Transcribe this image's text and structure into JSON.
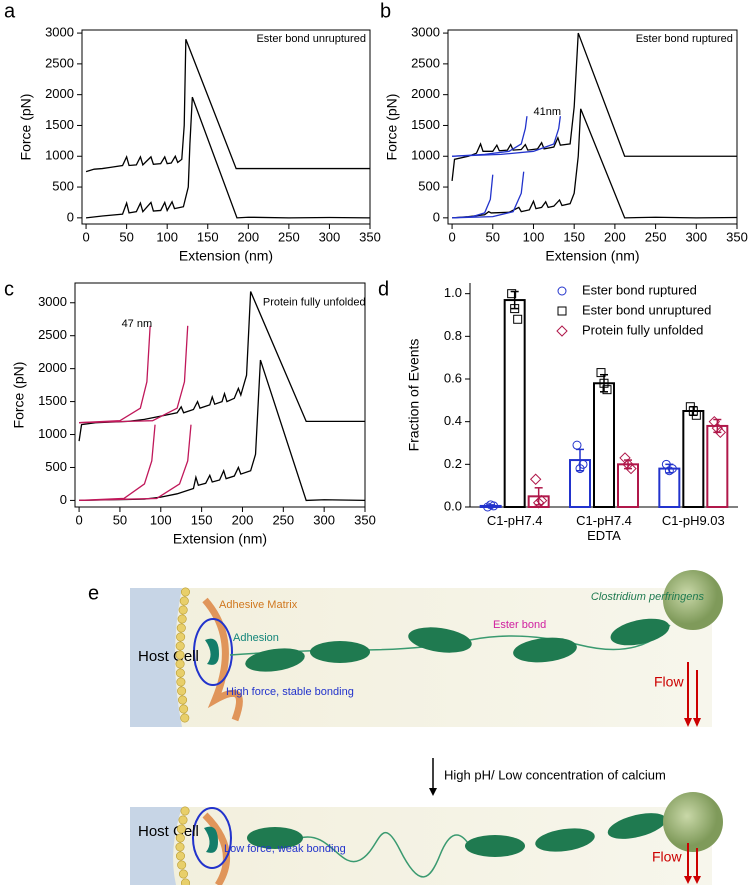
{
  "chart_data": [
    {
      "type": "line",
      "panel": "a",
      "xlabel": "Extension (nm)",
      "ylabel": "Force (pN)",
      "xlim": [
        -5,
        350
      ],
      "ylim": [
        -100,
        3050
      ],
      "xticks": [
        0,
        50,
        100,
        150,
        200,
        250,
        300,
        350
      ],
      "yticks": [
        0,
        500,
        1000,
        1500,
        2000,
        2500,
        3000
      ],
      "annotations": [
        {
          "text": "Ester bond unruptured",
          "color": "#000000"
        }
      ],
      "series": [
        {
          "color": "#000000",
          "x": [
            0,
            10,
            20,
            30,
            45,
            50,
            53,
            62,
            67,
            70,
            80,
            83,
            92,
            97,
            100,
            105,
            110,
            113,
            118,
            121,
            123,
            185,
            200,
            250,
            300,
            350
          ],
          "values": [
            750,
            790,
            800,
            820,
            850,
            990,
            850,
            860,
            990,
            860,
            990,
            870,
            880,
            990,
            880,
            890,
            1000,
            900,
            950,
            1500,
            2900,
            800,
            800,
            800,
            800,
            800
          ]
        },
        {
          "color": "#000000",
          "x": [
            0,
            20,
            45,
            50,
            53,
            62,
            67,
            70,
            80,
            83,
            92,
            97,
            100,
            106,
            109,
            120,
            126,
            128,
            131,
            186,
            200,
            250,
            300,
            350
          ],
          "values": [
            0,
            30,
            60,
            240,
            80,
            100,
            240,
            100,
            250,
            110,
            120,
            250,
            120,
            260,
            150,
            180,
            500,
            1200,
            1960,
            0,
            10,
            0,
            5,
            0
          ]
        }
      ]
    },
    {
      "type": "line",
      "panel": "b",
      "xlabel": "Extension (nm)",
      "ylabel": "Force (pN)",
      "xlim": [
        -5,
        350
      ],
      "ylim": [
        -100,
        3050
      ],
      "xticks": [
        0,
        50,
        100,
        150,
        200,
        250,
        300,
        350
      ],
      "yticks": [
        0,
        500,
        1000,
        1500,
        2000,
        2500,
        3000
      ],
      "annotations": [
        {
          "text": "Ester bond ruptured",
          "color": "#2233cc"
        },
        {
          "text": "41nm",
          "color": "#2233cc"
        }
      ],
      "series": [
        {
          "color": "#000000",
          "x": [
            0,
            3,
            20,
            30,
            35,
            38,
            50,
            55,
            58,
            68,
            72,
            75,
            85,
            90,
            93,
            105,
            110,
            113,
            125,
            130,
            133,
            145,
            150,
            155,
            212,
            250,
            300,
            350
          ],
          "values": [
            600,
            950,
            1000,
            1050,
            1200,
            1080,
            1080,
            1180,
            1090,
            1100,
            1190,
            1100,
            1110,
            1190,
            1100,
            1120,
            1220,
            1120,
            1150,
            1300,
            1180,
            1200,
            1800,
            3000,
            1000,
            1000,
            1000,
            1000
          ]
        },
        {
          "color": "#000000",
          "x": [
            0,
            20,
            40,
            45,
            48,
            70,
            82,
            85,
            95,
            100,
            103,
            110,
            115,
            118,
            125,
            132,
            135,
            145,
            150,
            155,
            158,
            212,
            250,
            300,
            350
          ],
          "values": [
            0,
            20,
            50,
            100,
            80,
            90,
            170,
            100,
            130,
            270,
            150,
            170,
            260,
            170,
            190,
            290,
            200,
            230,
            400,
            1000,
            1770,
            0,
            10,
            0,
            5
          ]
        },
        {
          "color": "#2233cc",
          "x": [
            0,
            40,
            70,
            85,
            90,
            92
          ],
          "values": [
            1000,
            1030,
            1080,
            1200,
            1450,
            1650
          ]
        },
        {
          "color": "#2233cc",
          "x": [
            0,
            60,
            100,
            125,
            131,
            133
          ],
          "values": [
            1000,
            1030,
            1080,
            1200,
            1450,
            1650
          ]
        },
        {
          "color": "#2233cc",
          "x": [
            0,
            25,
            40,
            47,
            50
          ],
          "values": [
            0,
            20,
            80,
            300,
            700
          ]
        },
        {
          "color": "#2233cc",
          "x": [
            0,
            50,
            75,
            85,
            88
          ],
          "values": [
            0,
            20,
            100,
            400,
            750
          ]
        }
      ]
    },
    {
      "type": "line",
      "panel": "c",
      "xlabel": "Extension (nm)",
      "ylabel": "Force (pN)",
      "xlim": [
        -5,
        350
      ],
      "ylim": [
        -100,
        3300
      ],
      "xticks": [
        0,
        50,
        100,
        150,
        200,
        250,
        300,
        350
      ],
      "yticks": [
        0,
        500,
        1000,
        1500,
        2000,
        2500,
        3000
      ],
      "annotations": [
        {
          "text": "Protein fully unfolded",
          "color": "#c0185a"
        },
        {
          "text": "47 nm",
          "color": "#c0185a"
        }
      ],
      "series": [
        {
          "color": "#000000",
          "x": [
            0,
            3,
            20,
            60,
            80,
            100,
            120,
            125,
            128,
            140,
            145,
            148,
            160,
            163,
            166,
            175,
            178,
            181,
            190,
            195,
            198,
            205,
            210,
            278,
            300,
            350
          ],
          "values": [
            900,
            1150,
            1180,
            1200,
            1230,
            1280,
            1330,
            1420,
            1330,
            1380,
            1500,
            1400,
            1450,
            1570,
            1460,
            1500,
            1620,
            1500,
            1550,
            1700,
            1600,
            1900,
            3170,
            1200,
            1200,
            1200
          ]
        },
        {
          "color": "#000000",
          "x": [
            0,
            40,
            80,
            100,
            120,
            140,
            143,
            146,
            155,
            160,
            163,
            172,
            177,
            180,
            190,
            195,
            198,
            210,
            216,
            222,
            278,
            300,
            350
          ],
          "values": [
            0,
            10,
            20,
            50,
            100,
            180,
            350,
            230,
            260,
            380,
            280,
            310,
            450,
            330,
            370,
            500,
            400,
            450,
            700,
            2130,
            0,
            10,
            0
          ]
        },
        {
          "color": "#c0185a",
          "x": [
            0,
            50,
            75,
            83,
            87
          ],
          "values": [
            1180,
            1210,
            1400,
            1800,
            2650
          ]
        },
        {
          "color": "#c0185a",
          "x": [
            0,
            90,
            120,
            129,
            133
          ],
          "values": [
            1180,
            1210,
            1400,
            1800,
            2650
          ]
        },
        {
          "color": "#c0185a",
          "x": [
            0,
            55,
            80,
            89,
            93
          ],
          "values": [
            0,
            30,
            250,
            600,
            1150
          ]
        },
        {
          "color": "#c0185a",
          "x": [
            0,
            95,
            123,
            133,
            137
          ],
          "values": [
            0,
            30,
            250,
            600,
            1150
          ]
        }
      ]
    },
    {
      "type": "bar",
      "panel": "d",
      "ylabel": "Fraction of Events",
      "categories": [
        "C1-pH7.4",
        "C1-pH7.4 EDTA",
        "C1-pH9.03"
      ],
      "ylim": [
        0,
        1.05
      ],
      "yticks": [
        {
          "value": 0,
          "label": "0.0"
        },
        0.2,
        0.4,
        0.6,
        0.8,
        {
          "value": 1,
          "label": "1.0"
        }
      ],
      "series": [
        {
          "name": "Ester bond ruptured",
          "color": "#2233cc",
          "marker": "circle",
          "values": [
            0.005,
            0.22,
            0.18
          ],
          "errors": [
            0.005,
            0.05,
            0.02
          ],
          "points": [
            [
              0,
              0.01,
              0.005
            ],
            [
              0.29,
              0.18,
              0.2
            ],
            [
              0.2,
              0.17,
              0.18
            ]
          ]
        },
        {
          "name": "Ester bond unruptured",
          "color": "#000000",
          "marker": "square",
          "values": [
            0.97,
            0.58,
            0.45
          ],
          "errors": [
            0.04,
            0.04,
            0.02
          ],
          "points": [
            [
              1.0,
              0.93,
              0.88
            ],
            [
              0.63,
              0.58,
              0.55
            ],
            [
              0.47,
              0.45,
              0.43
            ]
          ]
        },
        {
          "name": "Protein fully unfolded",
          "color": "#b0184a",
          "marker": "diamond",
          "values": [
            0.05,
            0.2,
            0.38
          ],
          "errors": [
            0.04,
            0.02,
            0.03
          ],
          "points": [
            [
              0.13,
              0.02,
              0.03
            ],
            [
              0.23,
              0.2,
              0.18
            ],
            [
              0.4,
              0.37,
              0.35
            ]
          ]
        }
      ]
    }
  ],
  "diagram": {
    "panel": "e",
    "top": {
      "host_cell": "Host Cell",
      "adhesive_matrix": "Adhesive Matrix",
      "adhesion": "Adhesion",
      "bacterium": "Clostridium perfringens",
      "ester_bond": "Ester bond",
      "bonding": "High force, stable bonding",
      "flow": "Flow"
    },
    "transition": "High pH/ Low concentration of calcium",
    "bottom": {
      "host_cell": "Host Cell",
      "bonding": "Low force, weak bonding",
      "flow": "Flow"
    }
  }
}
